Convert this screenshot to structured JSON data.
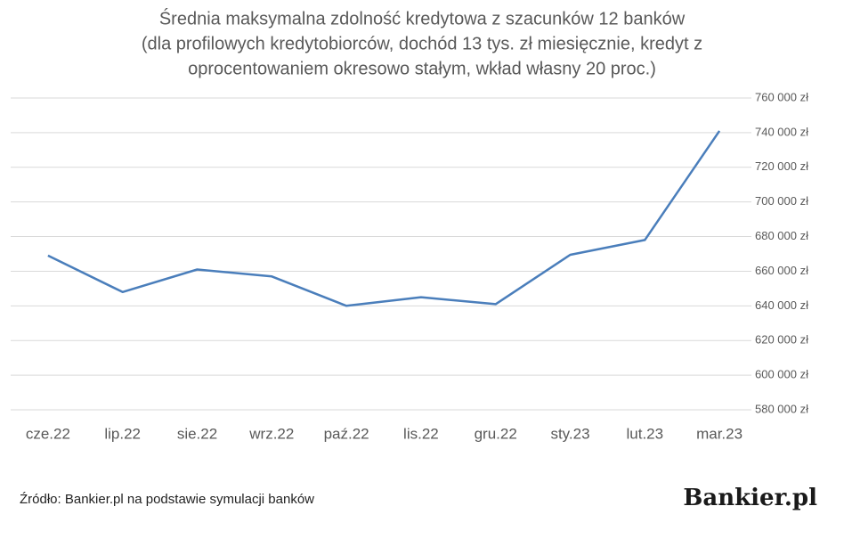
{
  "chart_data": {
    "type": "line",
    "title": "Średnia maksymalna zdolność kredytowa z szacunków 12 banków",
    "subtitle": [
      "(dla profilowych kredytobiorców, dochód 13 tys. zł miesięcznie, kredyt z",
      "oprocentowaniem okresowo stałym, wkład własny 20 proc.)"
    ],
    "categories": [
      "cze.22",
      "lip.22",
      "sie.22",
      "wrz.22",
      "paź.22",
      "lis.22",
      "gru.22",
      "sty.23",
      "lut.23",
      "mar.23"
    ],
    "values": [
      669000,
      648000,
      661000,
      657000,
      640000,
      645000,
      641000,
      669500,
      678000,
      741000
    ],
    "color": "#4a7ebb",
    "ylim": [
      580000,
      760000
    ],
    "yticks": [
      {
        "value": 580000,
        "label": "580 000 zł"
      },
      {
        "value": 600000,
        "label": "600 000 zł"
      },
      {
        "value": 620000,
        "label": "620 000 zł"
      },
      {
        "value": 640000,
        "label": "640 000 zł"
      },
      {
        "value": 660000,
        "label": "660 000 zł"
      },
      {
        "value": 680000,
        "label": "680 000 zł"
      },
      {
        "value": 700000,
        "label": "700 000 zł"
      },
      {
        "value": 720000,
        "label": "720 000 zł"
      },
      {
        "value": 740000,
        "label": "740 000 zł"
      },
      {
        "value": 760000,
        "label": "760 000 zł"
      }
    ],
    "grid": true,
    "source": "Źródło: Bankier.pl na podstawie symulacji banków",
    "logo": "Bankier.pl"
  }
}
